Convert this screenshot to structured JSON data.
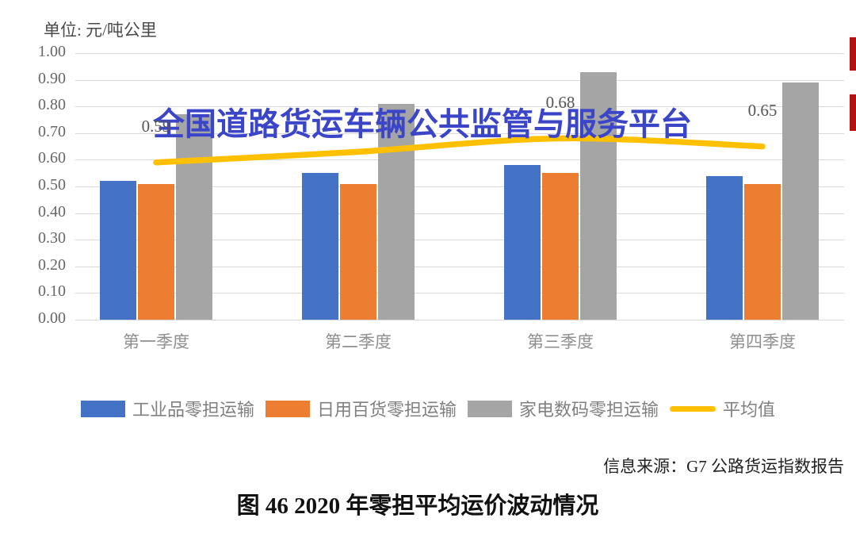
{
  "unit_label": "单位: 元/吨公里",
  "watermark": "全国道路货运车辆公共监管与服务平台",
  "source": "信息来源：G7 公路货运指数报告",
  "caption": "图 46 2020 年零担平均运价波动情况",
  "colors": {
    "bar_blue": "#4472C4",
    "bar_orange": "#ED7D31",
    "bar_gray": "#A5A5A5",
    "line_yellow": "#FFC000",
    "watermark_blue": "#3B45C8",
    "gridline": "#D9D9D9",
    "red_marker": "#B2130E"
  },
  "chart_data": {
    "type": "bar",
    "title": "",
    "xlabel": "",
    "ylabel": "单位: 元/吨公里",
    "ylim": [
      0,
      1
    ],
    "ytick_step": 0.1,
    "ytick_labels": [
      "0.00",
      "0.10",
      "0.20",
      "0.30",
      "0.40",
      "0.50",
      "0.60",
      "0.70",
      "0.80",
      "0.90",
      "1.00"
    ],
    "grid": true,
    "legend_position": "bottom",
    "categories": [
      "第一季度",
      "第二季度",
      "第三季度",
      "第四季度"
    ],
    "series": [
      {
        "key": "industrial-ltl",
        "name": "工业品零担运输",
        "type": "bar",
        "color": "#4472C4",
        "values": [
          0.52,
          0.55,
          0.58,
          0.54
        ]
      },
      {
        "key": "daily-goods-ltl",
        "name": "日用百货零担运输",
        "type": "bar",
        "color": "#ED7D31",
        "values": [
          0.51,
          0.51,
          0.55,
          0.51
        ]
      },
      {
        "key": "appliance-digital-ltl",
        "name": "家电数码零担运输",
        "type": "bar",
        "color": "#A5A5A5",
        "values": [
          0.77,
          0.81,
          0.93,
          0.89
        ]
      },
      {
        "key": "average",
        "name": "平均值",
        "type": "line",
        "color": "#FFC000",
        "values": [
          0.59,
          0.63,
          0.68,
          0.65
        ],
        "point_labels": [
          "0.59",
          "",
          "0.68",
          "0.65"
        ]
      }
    ]
  }
}
